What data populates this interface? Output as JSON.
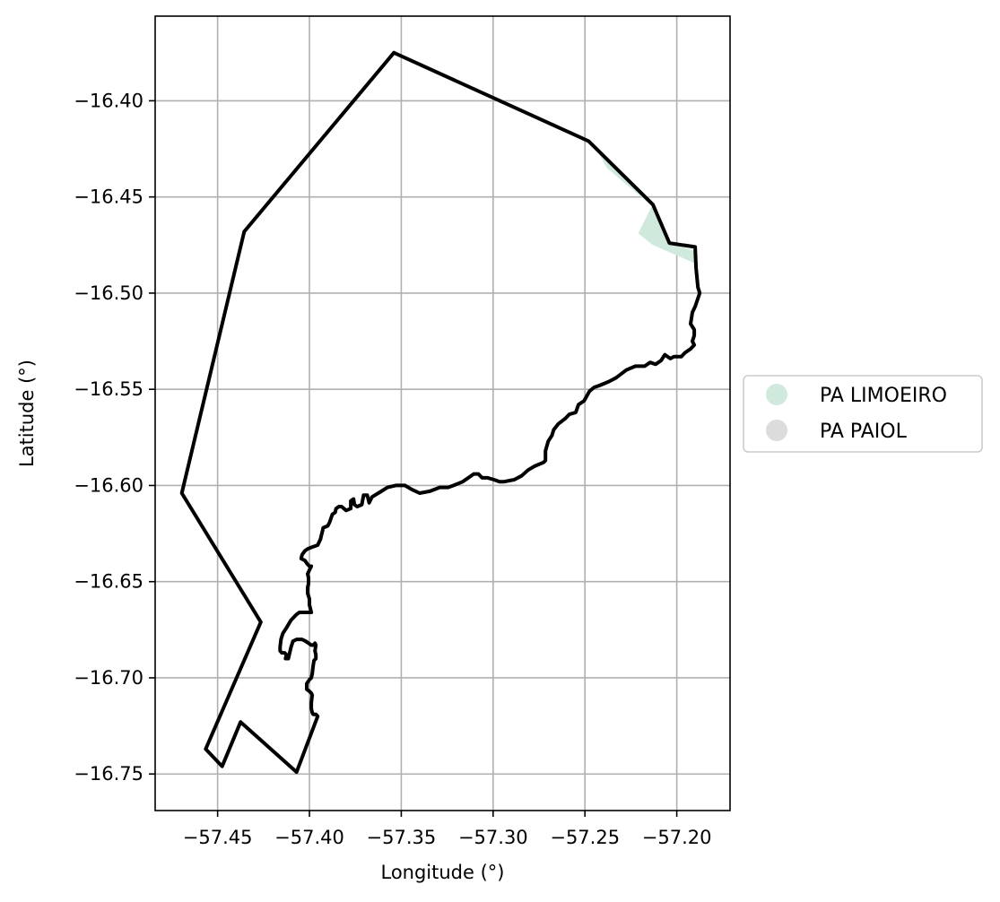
{
  "chart_data": {
    "type": "map",
    "xlabel": "Longitude (°)",
    "ylabel": "Latitude (°)",
    "xlim": [
      -57.484,
      -57.171
    ],
    "ylim": [
      -16.769,
      -16.356
    ],
    "xticks": [
      -57.45,
      -57.4,
      -57.35,
      -57.3,
      -57.25,
      -57.2
    ],
    "xtick_labels": [
      "−57.45",
      "−57.40",
      "−57.35",
      "−57.30",
      "−57.25",
      "−57.20"
    ],
    "yticks": [
      -16.4,
      -16.45,
      -16.5,
      -16.55,
      -16.6,
      -16.65,
      -16.7,
      -16.75
    ],
    "ytick_labels": [
      "−16.40",
      "−16.45",
      "−16.50",
      "−16.55",
      "−16.60",
      "−16.65",
      "−16.70",
      "−16.75"
    ],
    "grid": true,
    "legend_position": "outside-right",
    "legend": [
      {
        "label": "PA LIMOEIRO",
        "color": "#cfeadd"
      },
      {
        "label": "PA PAIOL",
        "color": "#dcdcdc"
      }
    ],
    "regions": [
      {
        "name": "PA LIMOEIRO",
        "fill": "#cfeadd",
        "polygon": [
          [
            -57.246,
            -16.4215
          ],
          [
            -57.213,
            -16.4535
          ],
          [
            -57.221,
            -16.469
          ],
          [
            -57.213,
            -16.475
          ],
          [
            -57.19,
            -16.4845
          ],
          [
            -57.1905,
            -16.478
          ],
          [
            -57.204,
            -16.474
          ],
          [
            -57.2125,
            -16.4555
          ],
          [
            -57.238,
            -16.435
          ]
        ]
      }
    ],
    "boundary": {
      "stroke": "#000000",
      "coordinates": [
        [
          -57.354,
          -16.375
        ],
        [
          -57.248,
          -16.421
        ],
        [
          -57.213,
          -16.454
        ],
        [
          -57.204,
          -16.474
        ],
        [
          -57.19,
          -16.476
        ],
        [
          -57.1895,
          -16.487
        ],
        [
          -57.1885,
          -16.497
        ],
        [
          -57.1875,
          -16.5
        ],
        [
          -57.19,
          -16.507
        ],
        [
          -57.1915,
          -16.51
        ],
        [
          -57.1925,
          -16.516
        ],
        [
          -57.1905,
          -16.519
        ],
        [
          -57.1905,
          -16.522
        ],
        [
          -57.1915,
          -16.525
        ],
        [
          -57.1905,
          -16.527
        ],
        [
          -57.1925,
          -16.529
        ],
        [
          -57.1955,
          -16.531
        ],
        [
          -57.1975,
          -16.533
        ],
        [
          -57.2015,
          -16.533
        ],
        [
          -57.2035,
          -16.534
        ],
        [
          -57.2065,
          -16.532
        ],
        [
          -57.2085,
          -16.535
        ],
        [
          -57.2115,
          -16.537
        ],
        [
          -57.2145,
          -16.536
        ],
        [
          -57.2175,
          -16.538
        ],
        [
          -57.2225,
          -16.538
        ],
        [
          -57.2275,
          -16.54
        ],
        [
          -57.233,
          -16.544
        ],
        [
          -57.237,
          -16.546
        ],
        [
          -57.242,
          -16.548
        ],
        [
          -57.245,
          -16.549
        ],
        [
          -57.2475,
          -16.551
        ],
        [
          -57.2505,
          -16.556
        ],
        [
          -57.2535,
          -16.558
        ],
        [
          -57.255,
          -16.562
        ],
        [
          -57.2585,
          -16.563
        ],
        [
          -57.2605,
          -16.565
        ],
        [
          -57.2645,
          -16.568
        ],
        [
          -57.267,
          -16.571
        ],
        [
          -57.268,
          -16.574
        ],
        [
          -57.27,
          -16.577
        ],
        [
          -57.2715,
          -16.582
        ],
        [
          -57.2715,
          -16.587
        ],
        [
          -57.2725,
          -16.588
        ],
        [
          -57.2775,
          -16.59
        ],
        [
          -57.281,
          -16.592
        ],
        [
          -57.2845,
          -16.595
        ],
        [
          -57.2885,
          -16.597
        ],
        [
          -57.294,
          -16.598
        ],
        [
          -57.2965,
          -16.598
        ],
        [
          -57.2995,
          -16.597
        ],
        [
          -57.303,
          -16.596
        ],
        [
          -57.306,
          -16.596
        ],
        [
          -57.308,
          -16.594
        ],
        [
          -57.3105,
          -16.594
        ],
        [
          -57.3135,
          -16.596
        ],
        [
          -57.3165,
          -16.598
        ],
        [
          -57.3215,
          -16.6
        ],
        [
          -57.3245,
          -16.601
        ],
        [
          -57.329,
          -16.601
        ],
        [
          -57.3345,
          -16.603
        ],
        [
          -57.34,
          -16.604
        ],
        [
          -57.3445,
          -16.602
        ],
        [
          -57.348,
          -16.6
        ],
        [
          -57.353,
          -16.6
        ],
        [
          -57.3575,
          -16.601
        ],
        [
          -57.3625,
          -16.604
        ],
        [
          -57.366,
          -16.606
        ],
        [
          -57.3675,
          -16.609
        ],
        [
          -57.3685,
          -16.605
        ],
        [
          -57.3705,
          -16.605
        ],
        [
          -57.3715,
          -16.61
        ],
        [
          -57.374,
          -16.611
        ],
        [
          -57.3755,
          -16.61
        ],
        [
          -57.376,
          -16.607
        ],
        [
          -57.3775,
          -16.608
        ],
        [
          -57.3775,
          -16.612
        ],
        [
          -57.38,
          -16.613
        ],
        [
          -57.3825,
          -16.611
        ],
        [
          -57.384,
          -16.611
        ],
        [
          -57.3855,
          -16.612
        ],
        [
          -57.386,
          -16.614
        ],
        [
          -57.3875,
          -16.615
        ],
        [
          -57.389,
          -16.619
        ],
        [
          -57.39,
          -16.621
        ],
        [
          -57.3925,
          -16.622
        ],
        [
          -57.393,
          -16.624
        ],
        [
          -57.3935,
          -16.626
        ],
        [
          -57.394,
          -16.628
        ],
        [
          -57.3955,
          -16.631
        ],
        [
          -57.3985,
          -16.632
        ],
        [
          -57.401,
          -16.633
        ],
        [
          -57.4025,
          -16.634
        ],
        [
          -57.404,
          -16.636
        ],
        [
          -57.4045,
          -16.638
        ],
        [
          -57.4025,
          -16.639
        ],
        [
          -57.401,
          -16.641
        ],
        [
          -57.4,
          -16.642
        ],
        [
          -57.399,
          -16.642
        ],
        [
          -57.4,
          -16.644
        ],
        [
          -57.401,
          -16.646
        ],
        [
          -57.4005,
          -16.648
        ],
        [
          -57.4005,
          -16.651
        ],
        [
          -57.401,
          -16.653
        ],
        [
          -57.401,
          -16.656
        ],
        [
          -57.4,
          -16.659
        ],
        [
          -57.4,
          -16.662
        ],
        [
          -57.399,
          -16.666
        ],
        [
          -57.401,
          -16.666
        ],
        [
          -57.4055,
          -16.666
        ],
        [
          -57.407,
          -16.667
        ],
        [
          -57.41,
          -16.67
        ],
        [
          -57.4125,
          -16.674
        ],
        [
          -57.4145,
          -16.677
        ],
        [
          -57.4155,
          -16.68
        ],
        [
          -57.416,
          -16.684
        ],
        [
          -57.416,
          -16.686
        ],
        [
          -57.415,
          -16.687
        ],
        [
          -57.4135,
          -16.687
        ],
        [
          -57.4125,
          -16.688
        ],
        [
          -57.413,
          -16.69
        ],
        [
          -57.4115,
          -16.69
        ],
        [
          -57.41,
          -16.684
        ],
        [
          -57.409,
          -16.681
        ],
        [
          -57.407,
          -16.68
        ],
        [
          -57.404,
          -16.68
        ],
        [
          -57.402,
          -16.681
        ],
        [
          -57.399,
          -16.683
        ],
        [
          -57.398,
          -16.683
        ],
        [
          -57.397,
          -16.682
        ],
        [
          -57.3965,
          -16.683
        ],
        [
          -57.397,
          -16.686
        ],
        [
          -57.3965,
          -16.688
        ],
        [
          -57.3965,
          -16.69
        ],
        [
          -57.3975,
          -16.691
        ],
        [
          -57.398,
          -16.694
        ],
        [
          -57.3985,
          -16.698
        ],
        [
          -57.399,
          -16.7
        ],
        [
          -57.4,
          -16.701
        ],
        [
          -57.4015,
          -16.703
        ],
        [
          -57.4015,
          -16.706
        ],
        [
          -57.4,
          -16.707
        ],
        [
          -57.399,
          -16.708
        ],
        [
          -57.3985,
          -16.709
        ],
        [
          -57.399,
          -16.713
        ],
        [
          -57.399,
          -16.716
        ],
        [
          -57.3985,
          -16.718
        ],
        [
          -57.398,
          -16.719
        ],
        [
          -57.3965,
          -16.719
        ],
        [
          -57.3955,
          -16.72
        ],
        [
          -57.407,
          -16.749
        ],
        [
          -57.4375,
          -16.723
        ],
        [
          -57.4475,
          -16.746
        ],
        [
          -57.4565,
          -16.737
        ],
        [
          -57.4265,
          -16.671
        ],
        [
          -57.4695,
          -16.604
        ],
        [
          -57.4355,
          -16.468
        ],
        [
          -57.354,
          -16.375
        ]
      ]
    }
  }
}
